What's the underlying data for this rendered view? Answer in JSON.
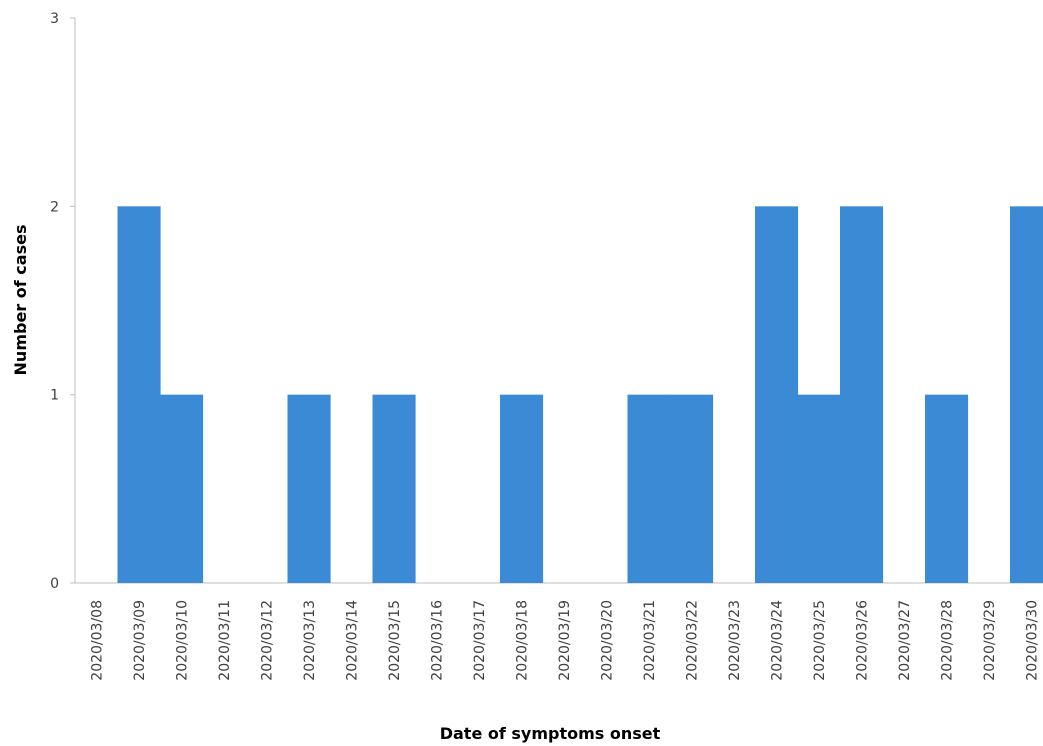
{
  "chart_data": {
    "type": "bar",
    "title": "",
    "xlabel": "Date of symptoms onset",
    "ylabel": "Number of cases",
    "ylim": [
      0,
      3
    ],
    "yticks": [
      "0",
      "1",
      "2",
      "3"
    ],
    "grid": false,
    "legend": "none",
    "bar_color": "#3a8ad6",
    "categories": [
      "2020/03/08",
      "2020/03/09",
      "2020/03/10",
      "2020/03/11",
      "2020/03/12",
      "2020/03/13",
      "2020/03/14",
      "2020/03/15",
      "2020/03/16",
      "2020/03/17",
      "2020/03/18",
      "2020/03/19",
      "2020/03/20",
      "2020/03/21",
      "2020/03/22",
      "2020/03/23",
      "2020/03/24",
      "2020/03/25",
      "2020/03/26",
      "2020/03/27",
      "2020/03/28",
      "2020/03/29",
      "2020/03/30"
    ],
    "values": [
      0,
      2,
      1,
      0,
      0,
      1,
      0,
      1,
      0,
      0,
      1,
      0,
      0,
      1,
      1,
      0,
      2,
      1,
      2,
      0,
      1,
      0,
      2
    ]
  }
}
